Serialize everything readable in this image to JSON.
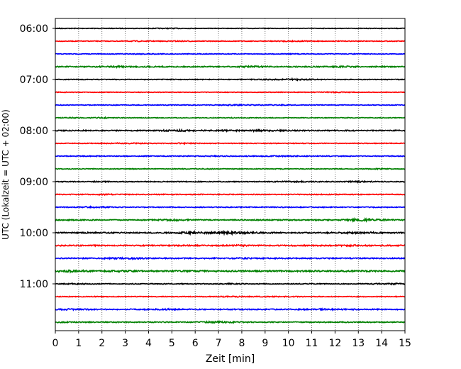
{
  "chart_data": {
    "type": "line",
    "title": "",
    "xlabel": "Zeit  [min]",
    "ylabel": "UTC (Lokalzeit = UTC + 02:00)",
    "xlim": [
      0,
      15
    ],
    "x_ticks": [
      0,
      1,
      2,
      3,
      4,
      5,
      6,
      7,
      8,
      9,
      10,
      11,
      12,
      13,
      14,
      15
    ],
    "x_tick_labels": [
      "0",
      "1",
      "2",
      "3",
      "4",
      "5",
      "6",
      "7",
      "8",
      "9",
      "10",
      "11",
      "12",
      "13",
      "14",
      "15"
    ],
    "y_tick_labels": [
      "06:00",
      "07:00",
      "08:00",
      "09:00",
      "10:00",
      "11:00"
    ],
    "y_tick_trace_index": [
      0,
      4,
      8,
      12,
      16,
      20
    ],
    "grid": "vertical dotted lines at each minute",
    "trace_interval_minutes": 15,
    "colors": [
      "#000000",
      "#ff0000",
      "#0000ff",
      "#008000"
    ],
    "series": [
      {
        "start": "06:00",
        "color": "#000000",
        "amplitude": 0.25
      },
      {
        "start": "06:15",
        "color": "#ff0000",
        "amplitude": 0.3
      },
      {
        "start": "06:30",
        "color": "#0000ff",
        "amplitude": 0.3
      },
      {
        "start": "06:45",
        "color": "#008000",
        "amplitude": 0.45
      },
      {
        "start": "07:00",
        "color": "#000000",
        "amplitude": 0.3
      },
      {
        "start": "07:15",
        "color": "#ff0000",
        "amplitude": 0.25
      },
      {
        "start": "07:30",
        "color": "#0000ff",
        "amplitude": 0.3
      },
      {
        "start": "07:45",
        "color": "#008000",
        "amplitude": 0.3
      },
      {
        "start": "08:00",
        "color": "#000000",
        "amplitude": 0.45
      },
      {
        "start": "08:15",
        "color": "#ff0000",
        "amplitude": 0.3
      },
      {
        "start": "08:30",
        "color": "#0000ff",
        "amplitude": 0.35
      },
      {
        "start": "08:45",
        "color": "#008000",
        "amplitude": 0.3
      },
      {
        "start": "09:00",
        "color": "#000000",
        "amplitude": 0.35
      },
      {
        "start": "09:15",
        "color": "#ff0000",
        "amplitude": 0.35
      },
      {
        "start": "09:30",
        "color": "#0000ff",
        "amplitude": 0.35
      },
      {
        "start": "09:45",
        "color": "#008000",
        "amplitude": 0.45
      },
      {
        "start": "10:00",
        "color": "#000000",
        "amplitude": 0.5
      },
      {
        "start": "10:15",
        "color": "#ff0000",
        "amplitude": 0.5
      },
      {
        "start": "10:30",
        "color": "#0000ff",
        "amplitude": 0.45
      },
      {
        "start": "10:45",
        "color": "#008000",
        "amplitude": 0.6
      },
      {
        "start": "11:00",
        "color": "#000000",
        "amplitude": 0.35
      },
      {
        "start": "11:15",
        "color": "#ff0000",
        "amplitude": 0.3
      },
      {
        "start": "11:30",
        "color": "#0000ff",
        "amplitude": 0.45
      },
      {
        "start": "11:45",
        "color": "#008000",
        "amplitude": 0.4
      }
    ]
  }
}
